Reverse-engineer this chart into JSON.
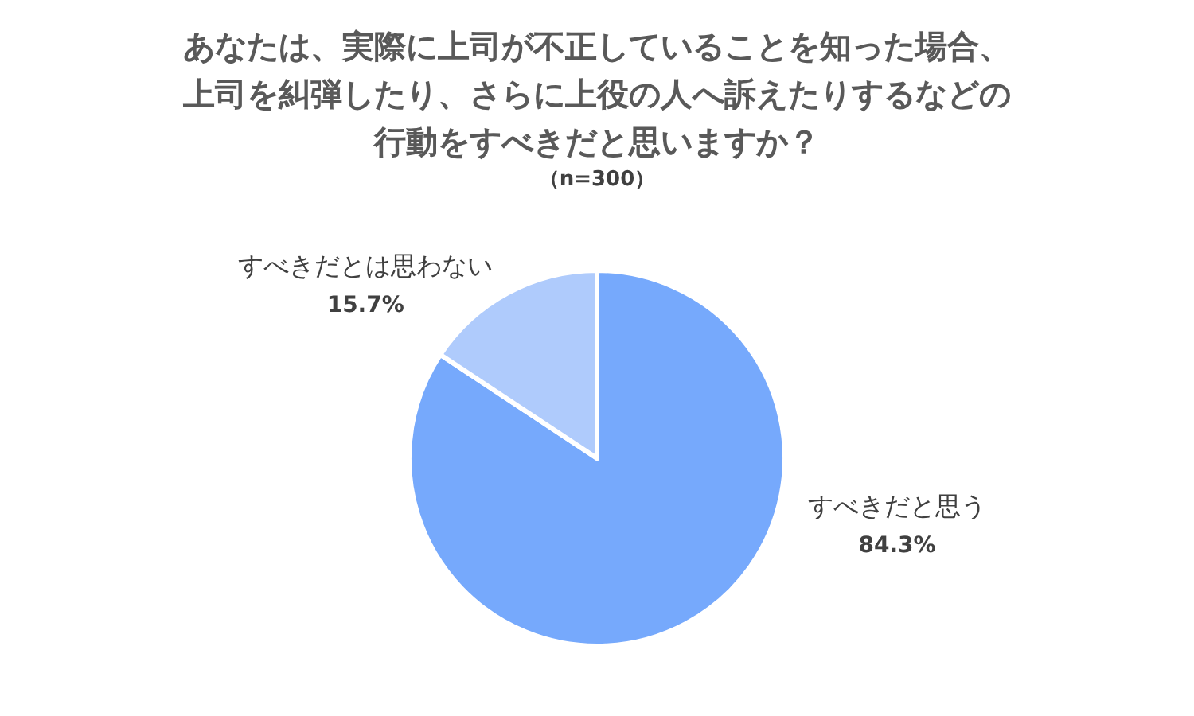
{
  "chart_data": {
    "type": "pie",
    "title": "あなたは、実際に上司が不正していることを知った場合、上司を糾弾したり、さらに上役の人へ訴えたりするなどの行動をすべきだと思いますか？",
    "subtitle": "（n=300）",
    "categories": [
      "すべきだと思う",
      "すべきだとは思わない"
    ],
    "values": [
      84.3,
      15.7
    ],
    "colors": [
      "#76a9fc",
      "#afcbfc"
    ],
    "value_labels": [
      "84.3%",
      "15.7%"
    ],
    "legend": false
  }
}
